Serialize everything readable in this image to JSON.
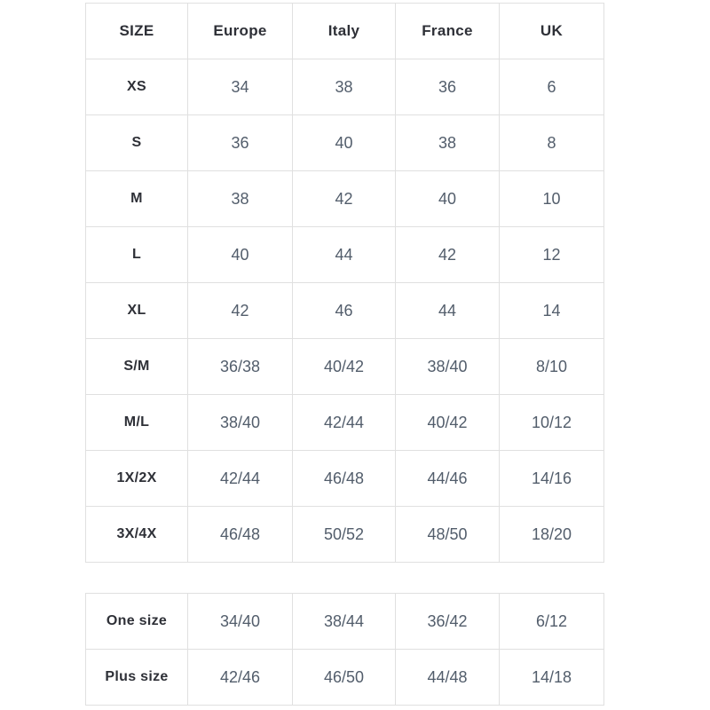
{
  "colors": {
    "border": "#e0e0e0",
    "heading-text": "#2e3037",
    "value-text": "#525d6b",
    "page-bg": "#ffffff"
  },
  "size_chart": {
    "columns": [
      "SIZE",
      "Europe",
      "Italy",
      "France",
      "UK"
    ],
    "rows": [
      {
        "label": "XS",
        "values": [
          "34",
          "38",
          "36",
          "6"
        ]
      },
      {
        "label": "S",
        "values": [
          "36",
          "40",
          "38",
          "8"
        ]
      },
      {
        "label": "M",
        "values": [
          "38",
          "42",
          "40",
          "10"
        ]
      },
      {
        "label": "L",
        "values": [
          "40",
          "44",
          "42",
          "12"
        ]
      },
      {
        "label": "XL",
        "values": [
          "42",
          "46",
          "44",
          "14"
        ]
      },
      {
        "label": "S/M",
        "values": [
          "36/38",
          "40/42",
          "38/40",
          "8/10"
        ]
      },
      {
        "label": "M/L",
        "values": [
          "38/40",
          "42/44",
          "40/42",
          "10/12"
        ]
      },
      {
        "label": "1X/2X",
        "values": [
          "42/44",
          "46/48",
          "44/46",
          "14/16"
        ]
      },
      {
        "label": "3X/4X",
        "values": [
          "46/48",
          "50/52",
          "48/50",
          "18/20"
        ]
      }
    ]
  },
  "special_sizes": {
    "rows": [
      {
        "label": "One size",
        "values": [
          "34/40",
          "38/44",
          "36/42",
          "6/12"
        ]
      },
      {
        "label": "Plus size",
        "values": [
          "42/46",
          "46/50",
          "44/48",
          "14/18"
        ]
      }
    ]
  }
}
